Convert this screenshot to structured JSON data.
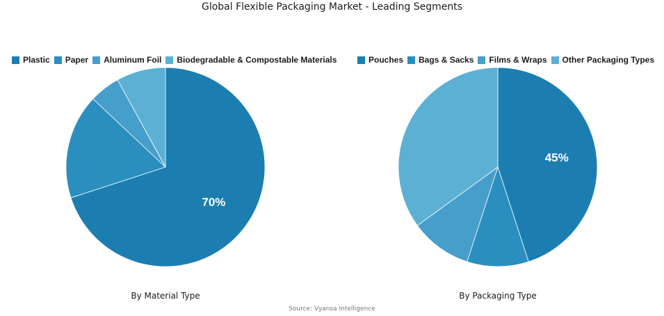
{
  "title": "Global Flexible Packaging Market - Leading Segments",
  "source": "Source: Vyansa Intelligence",
  "chart_data": [
    {
      "type": "pie",
      "title": "By Material Type",
      "legend_position": "top-left",
      "labels": [
        "Plastic",
        "Paper",
        "Aluminum Foil",
        "Biodegradable & Compostable Materials"
      ],
      "values": [
        70,
        17,
        5,
        8
      ],
      "colors": [
        "#1c7eb0",
        "#2a8fbf",
        "#469fca",
        "#5cb0d3"
      ],
      "data_labels": [
        "70%",
        "",
        "",
        ""
      ]
    },
    {
      "type": "pie",
      "title": "By Packaging Type",
      "legend_position": "top-left",
      "labels": [
        "Pouches",
        "Bags & Sacks",
        "Films & Wraps",
        "Other Packaging Types"
      ],
      "values": [
        45,
        10,
        10,
        35
      ],
      "colors": [
        "#1c7eb0",
        "#2a8fbf",
        "#469fca",
        "#5cb0d3"
      ],
      "data_labels": [
        "45%",
        "",
        "",
        ""
      ]
    }
  ]
}
